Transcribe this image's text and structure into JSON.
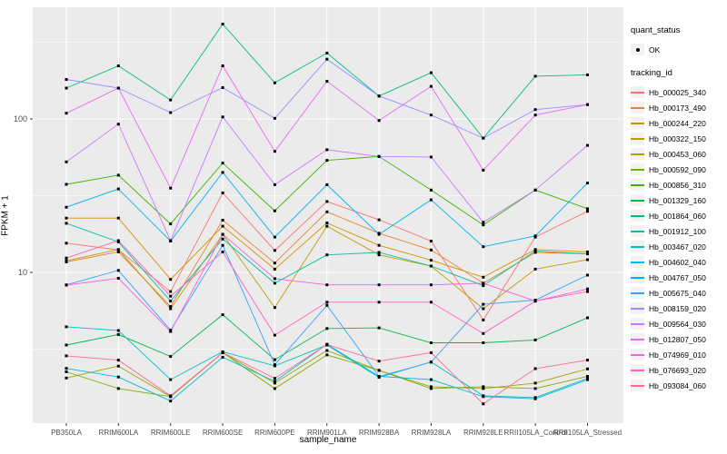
{
  "axes": {
    "x_title": "sample_name",
    "y_title": "FPKM + 1"
  },
  "legend": {
    "quant_status_title": "quant_status",
    "quant_status_value": "OK",
    "tracking_id_title": "tracking_id"
  },
  "chart_data": {
    "type": "line",
    "title": "",
    "xlabel": "sample_name",
    "ylabel": "FPKM + 1",
    "y_scale": "log10",
    "ylim": [
      1.05,
      530
    ],
    "y_ticks": [
      10,
      100
    ],
    "y_minor_ticks": [
      3.162,
      31.62,
      316.2
    ],
    "grid": "on",
    "legend_position": "right",
    "panel_bg": "#EBEBEB",
    "grid_color": "#FFFFFF",
    "tick_label_color": "#4D4D4D",
    "point_color": "#000000",
    "categories": [
      "PB350LA",
      "RRIM600LA",
      "RRIM600LE",
      "RRIM600SE",
      "RRIM600PE",
      "RRIM901LA",
      "RRIM928BA",
      "RRIM928LA",
      "RRIM928LE",
      "RRII105LA_Control",
      "RRII105LA_Stressed"
    ],
    "series": [
      {
        "name": "Hb_000025_340",
        "color": "#F8766D",
        "values": [
          15.5,
          14.0,
          7.5,
          33,
          13.9,
          29,
          22,
          16,
          4.9,
          17,
          25
        ]
      },
      {
        "name": "Hb_000173_490",
        "color": "#EA8331",
        "values": [
          11.7,
          13.6,
          6.0,
          21.9,
          11.5,
          24.8,
          18,
          14,
          8.5,
          13.5,
          13.2
        ]
      },
      {
        "name": "Hb_000244_220",
        "color": "#D89000",
        "values": [
          22.6,
          22.6,
          9.0,
          20.0,
          10.5,
          21,
          15,
          12,
          9.3,
          14.1,
          13.6
        ]
      },
      {
        "name": "Hb_000322_150",
        "color": "#C09B00",
        "values": [
          11.9,
          14.1,
          5.8,
          17.7,
          5.9,
          20,
          13,
          11,
          5.8,
          10.5,
          12.1
        ]
      },
      {
        "name": "Hb_000453_060",
        "color": "#A3A500",
        "values": [
          2.05,
          2.45,
          1.55,
          3.0,
          1.9,
          3.1,
          2.3,
          1.8,
          1.75,
          1.9,
          2.35
        ]
      },
      {
        "name": "Hb_000592_090",
        "color": "#7CAE00",
        "values": [
          2.25,
          1.75,
          1.55,
          3.0,
          1.75,
          2.9,
          2.3,
          1.75,
          1.8,
          1.75,
          2.1
        ]
      },
      {
        "name": "Hb_000856_310",
        "color": "#39B600",
        "values": [
          37.5,
          43,
          20.7,
          51.6,
          25.2,
          53.7,
          57,
          34.4,
          20.4,
          34.4,
          26
        ]
      },
      {
        "name": "Hb_001329_160",
        "color": "#00BB4E",
        "values": [
          3.36,
          3.94,
          2.83,
          5.3,
          2.7,
          4.31,
          4.35,
          3.48,
          3.48,
          3.63,
          5.06
        ]
      },
      {
        "name": "Hb_001864_060",
        "color": "#00BF7D",
        "values": [
          159,
          222,
          133,
          415,
          172,
          269,
          141,
          200,
          75,
          190,
          194
        ]
      },
      {
        "name": "Hb_001912_100",
        "color": "#00C1A3",
        "values": [
          20.9,
          15.8,
          6.5,
          16.5,
          8.5,
          13,
          13.5,
          11,
          8.2,
          13.8,
          13.2
        ]
      },
      {
        "name": "Hb_003467_020",
        "color": "#00BFC4",
        "values": [
          4.42,
          4.18,
          2.0,
          3.04,
          2.46,
          3.36,
          2.07,
          2.61,
          1.57,
          1.53,
          2.04
        ]
      },
      {
        "name": "Hb_004602_040",
        "color": "#00BAE0",
        "values": [
          2.37,
          2.08,
          1.45,
          2.8,
          1.95,
          3.4,
          2.1,
          2.0,
          1.55,
          1.5,
          2.0
        ]
      },
      {
        "name": "Hb_004767_050",
        "color": "#00B0F6",
        "values": [
          26.6,
          35,
          16,
          44.8,
          17,
          37.3,
          17.7,
          29.7,
          14.7,
          17.3,
          38.2
        ]
      },
      {
        "name": "Hb_005675_040",
        "color": "#35A2FF",
        "values": [
          8.3,
          10.3,
          4.2,
          15,
          2.5,
          6.1,
          2.1,
          2.6,
          6.2,
          6.6,
          9.6
        ]
      },
      {
        "name": "Hb_008159_020",
        "color": "#9590FF",
        "values": [
          181,
          159,
          110,
          160,
          101,
          245,
          141,
          106,
          75,
          115,
          124
        ]
      },
      {
        "name": "Hb_009564_030",
        "color": "#C77CFF",
        "values": [
          52.5,
          92.5,
          16.1,
          103,
          37.3,
          63,
          57,
          56.5,
          21.2,
          34.4,
          67.3
        ]
      },
      {
        "name": "Hb_012807_050",
        "color": "#E76BF3",
        "values": [
          109,
          159,
          35.4,
          222,
          61.5,
          176,
          97.7,
          163,
          46.4,
          106,
          124
        ]
      },
      {
        "name": "Hb_074969_010",
        "color": "#FA62DB",
        "values": [
          8.26,
          9.15,
          4.12,
          17.7,
          9.1,
          8.3,
          8.3,
          8.3,
          8.5,
          6.5,
          7.8
        ]
      },
      {
        "name": "Hb_076693_020",
        "color": "#FF62BC",
        "values": [
          12.4,
          16.1,
          7.0,
          13.6,
          3.9,
          6.4,
          6.4,
          6.4,
          4.0,
          6.5,
          7.5
        ]
      },
      {
        "name": "Hb_093084_060",
        "color": "#FF6A98",
        "values": [
          2.86,
          2.68,
          1.57,
          3.0,
          2.04,
          3.39,
          2.64,
          3.0,
          1.39,
          2.36,
          2.68
        ]
      }
    ]
  }
}
